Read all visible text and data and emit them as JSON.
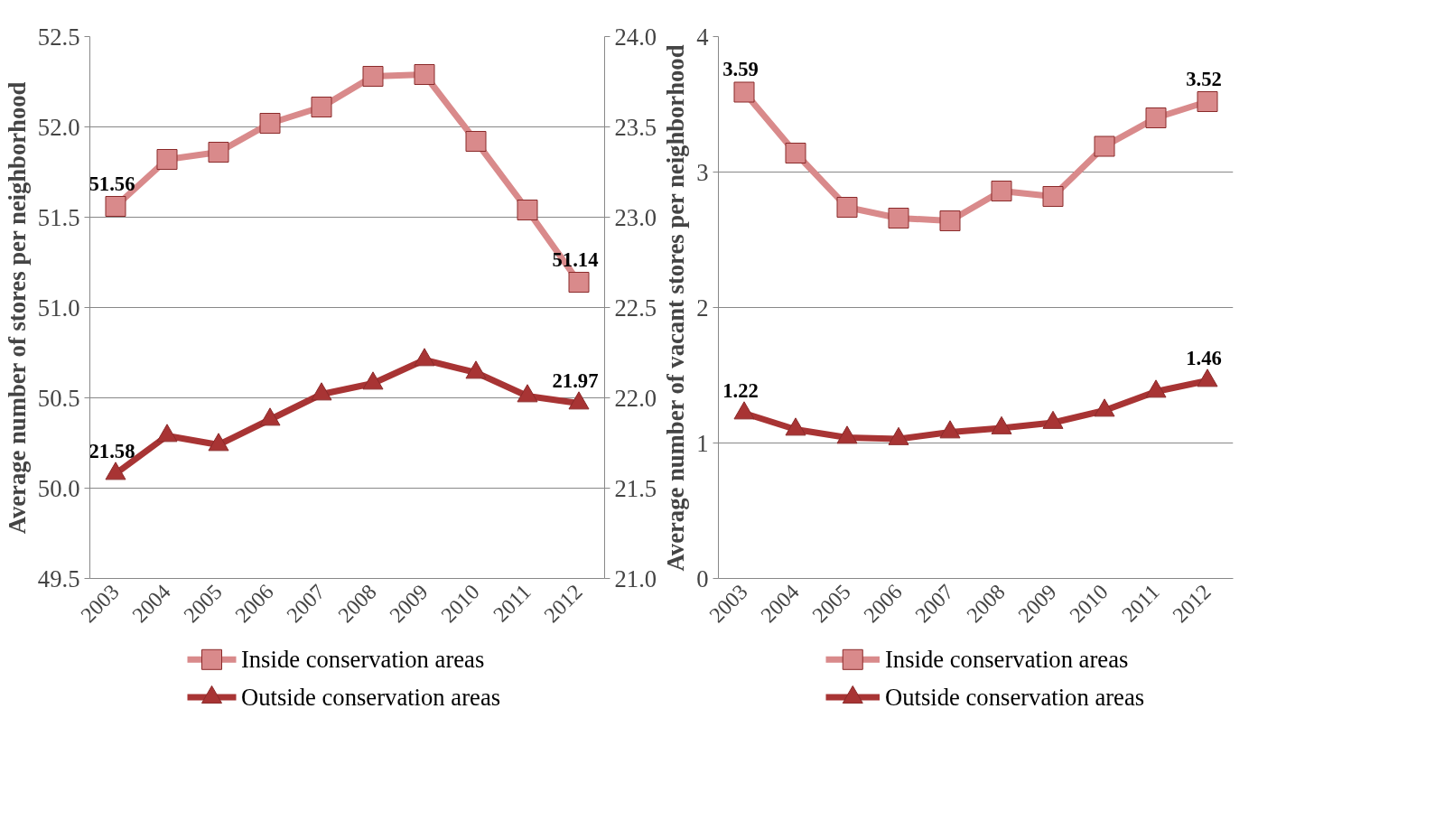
{
  "chart_data": [
    {
      "type": "line",
      "ylabel": "Average number of stores per neighborhood",
      "categories": [
        "2003",
        "2004",
        "2005",
        "2006",
        "2007",
        "2008",
        "2009",
        "2010",
        "2011",
        "2012"
      ],
      "ylim": [
        49.5,
        52.5
      ],
      "yticks": [
        {
          "value": 49.5,
          "label": "49.5"
        },
        {
          "value": 50,
          "label": "50.0"
        },
        {
          "value": 50.5,
          "label": "50.5"
        },
        {
          "value": 51,
          "label": "51.0"
        },
        {
          "value": 51.5,
          "label": "51.5"
        },
        {
          "value": 52,
          "label": "52.0"
        },
        {
          "value": 52.5,
          "label": "52.5"
        }
      ],
      "y2lim": [
        21,
        24
      ],
      "y2ticks": [
        {
          "value": 21,
          "label": "21.0"
        },
        {
          "value": 21.5,
          "label": "21.5"
        },
        {
          "value": 22,
          "label": "22.0"
        },
        {
          "value": 22.5,
          "label": "22.5"
        },
        {
          "value": 23,
          "label": "23.0"
        },
        {
          "value": 23.5,
          "label": "23.5"
        },
        {
          "value": 24,
          "label": "24.0"
        }
      ],
      "grid": "y",
      "legend": "bottom",
      "line_style": "solid",
      "series": [
        {
          "name": "Inside conservation areas",
          "color": "#d98a8b",
          "marker": "square",
          "values": [
            51.56,
            51.82,
            51.86,
            52.02,
            52.11,
            52.28,
            52.29,
            51.92,
            51.54,
            51.14
          ],
          "value_labels": [
            "51.56",
            null,
            null,
            null,
            null,
            null,
            null,
            null,
            null,
            "51.14"
          ]
        },
        {
          "name": "Outside conservation areas",
          "color": "#a83434",
          "marker": "triangle",
          "axis": "y2",
          "values": [
            21.58,
            21.79,
            21.74,
            21.88,
            22.02,
            22.08,
            22.21,
            22.14,
            22.01,
            21.97
          ],
          "value_labels": [
            "21.58",
            null,
            null,
            null,
            null,
            null,
            null,
            null,
            null,
            "21.97"
          ]
        }
      ]
    },
    {
      "type": "line",
      "ylabel": "Average number of vacant stores per neighborhood",
      "categories": [
        "2003",
        "2004",
        "2005",
        "2006",
        "2007",
        "2008",
        "2009",
        "2010",
        "2011",
        "2012"
      ],
      "ylim": [
        0,
        4
      ],
      "yticks": [
        0,
        1,
        2,
        3,
        4
      ],
      "grid": "y",
      "legend": "bottom",
      "line_style": "solid",
      "series": [
        {
          "name": "Inside conservation areas",
          "color": "#d98a8b",
          "marker": "square",
          "values": [
            3.59,
            3.14,
            2.74,
            2.66,
            2.64,
            2.86,
            2.82,
            3.19,
            3.4,
            3.52
          ],
          "value_labels": [
            "3.59",
            null,
            null,
            null,
            null,
            null,
            null,
            null,
            null,
            "3.52"
          ]
        },
        {
          "name": "Outside conservation areas",
          "color": "#a83434",
          "marker": "triangle",
          "values": [
            1.22,
            1.1,
            1.04,
            1.03,
            1.08,
            1.11,
            1.15,
            1.24,
            1.38,
            1.46
          ],
          "value_labels": [
            "1.22",
            null,
            null,
            null,
            null,
            null,
            null,
            null,
            null,
            "1.46"
          ]
        }
      ]
    }
  ]
}
